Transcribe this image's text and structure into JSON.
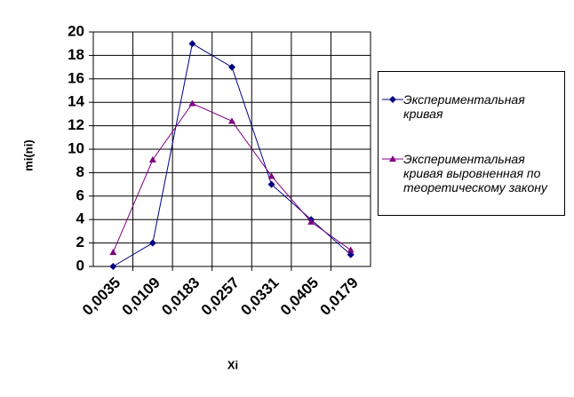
{
  "chart_data": {
    "type": "line",
    "x_label": "Xi",
    "y_label": "mi(ni)",
    "categories": [
      "0,0035",
      "0,0109",
      "0,0183",
      "0,0257",
      "0,0331",
      "0,0405",
      "0,0179"
    ],
    "series": [
      {
        "name": "Экспериментальная кривая",
        "color": "#000080",
        "marker": "diamond",
        "values": [
          0,
          2,
          19,
          17,
          7,
          4,
          1
        ]
      },
      {
        "name": "Экспериментальная кривая выровненная по теоретическому закону",
        "color": "#800080",
        "marker": "triangle",
        "values": [
          1.2,
          9.1,
          13.9,
          12.4,
          7.7,
          3.8,
          1.4
        ]
      }
    ],
    "ylim": [
      0,
      20
    ],
    "yticks": [
      0,
      2,
      4,
      6,
      8,
      10,
      12,
      14,
      16,
      18,
      20
    ],
    "grid": true
  }
}
